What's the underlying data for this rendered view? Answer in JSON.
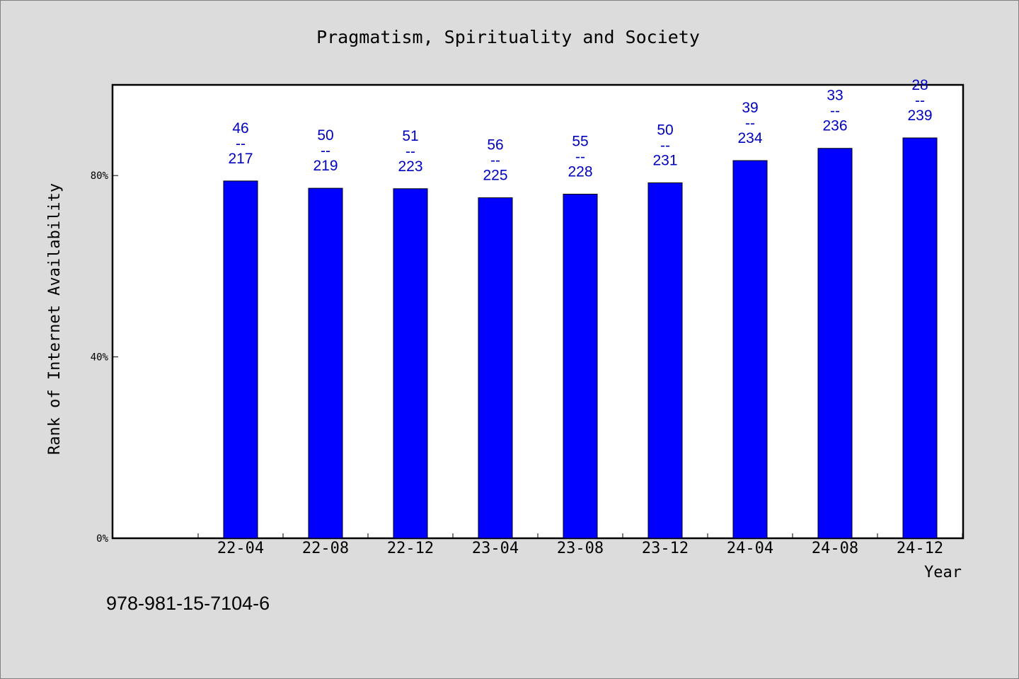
{
  "chart_data": {
    "type": "bar",
    "title": "Pragmatism, Spirituality and Society",
    "xlabel": "Year",
    "ylabel": "Rank of Internet Availability",
    "categories": [
      "22-04",
      "22-08",
      "22-12",
      "23-04",
      "23-08",
      "23-12",
      "24-04",
      "24-08",
      "24-12"
    ],
    "values": [
      78.8,
      77.2,
      77.1,
      75.1,
      75.9,
      78.4,
      83.3,
      86.0,
      88.3
    ],
    "data_labels": [
      {
        "top": "46",
        "sep": "--",
        "bottom": "217"
      },
      {
        "top": "50",
        "sep": "--",
        "bottom": "219"
      },
      {
        "top": "51",
        "sep": "--",
        "bottom": "223"
      },
      {
        "top": "56",
        "sep": "--",
        "bottom": "225"
      },
      {
        "top": "55",
        "sep": "--",
        "bottom": "228"
      },
      {
        "top": "50",
        "sep": "--",
        "bottom": "231"
      },
      {
        "top": "39",
        "sep": "--",
        "bottom": "234"
      },
      {
        "top": "33",
        "sep": "--",
        "bottom": "236"
      },
      {
        "top": "28",
        "sep": "--",
        "bottom": "239"
      }
    ],
    "yticks": [
      0,
      40,
      80
    ],
    "ytick_labels": [
      "0%",
      "40%",
      "80%"
    ],
    "ylim": [
      0,
      100
    ],
    "grid": false,
    "bar_color": "#0000ff",
    "label_color": "#0000c0"
  },
  "footer": {
    "isbn": "978-981-15-7104-6"
  }
}
